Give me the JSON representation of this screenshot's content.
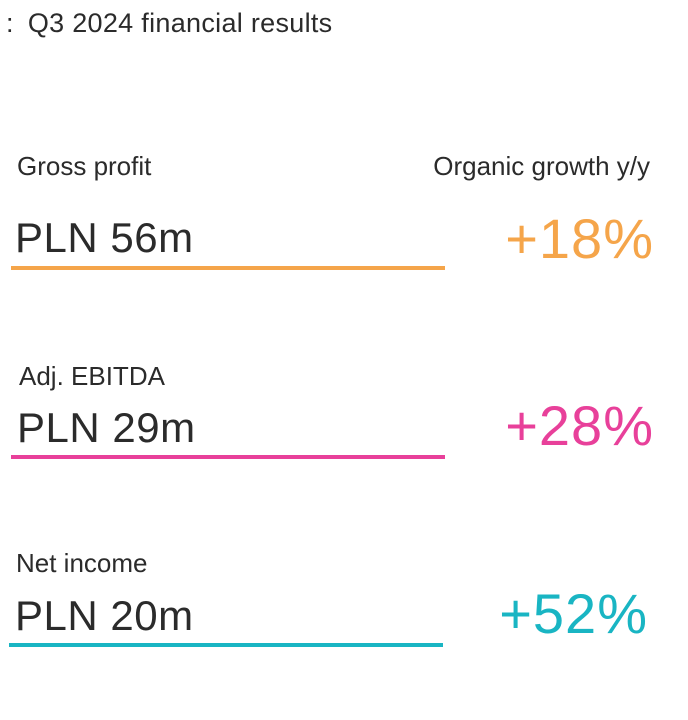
{
  "header": {
    "bullet": ":",
    "title": "Q3 2024 financial results",
    "growth_heading": "Organic growth y/y"
  },
  "metrics": [
    {
      "label": "Gross profit",
      "value": "PLN 56m",
      "growth": "+18%",
      "color": "#F5A54A"
    },
    {
      "label": "Adj. EBITDA",
      "value": "PLN 29m",
      "growth": "+28%",
      "color": "#E8409A"
    },
    {
      "label": "Net income",
      "value": "PLN 20m",
      "growth": "+52%",
      "color": "#19B5C3"
    }
  ]
}
